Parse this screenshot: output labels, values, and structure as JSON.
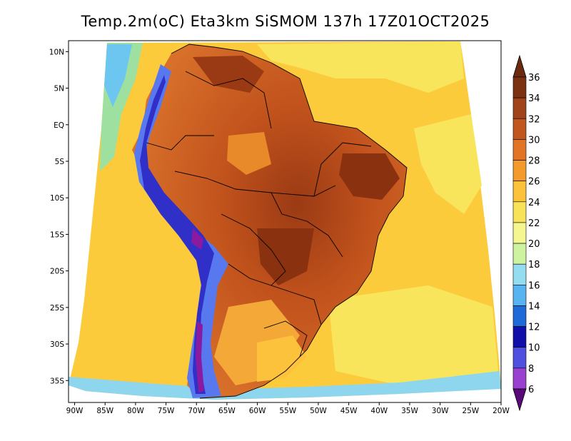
{
  "title": "Temp.2m(oC) Eta3km SiSMOM 137h 17Z01OCT2025",
  "map": {
    "lon_range": [
      -91,
      -20
    ],
    "lat_range": [
      -38,
      11.5
    ],
    "lon_ticks": [
      {
        "lon": -90,
        "label": "90W"
      },
      {
        "lon": -85,
        "label": "85W"
      },
      {
        "lon": -80,
        "label": "80W"
      },
      {
        "lon": -75,
        "label": "75W"
      },
      {
        "lon": -70,
        "label": "70W"
      },
      {
        "lon": -65,
        "label": "65W"
      },
      {
        "lon": -60,
        "label": "60W"
      },
      {
        "lon": -55,
        "label": "55W"
      },
      {
        "lon": -50,
        "label": "50W"
      },
      {
        "lon": -45,
        "label": "45W"
      },
      {
        "lon": -40,
        "label": "40W"
      },
      {
        "lon": -35,
        "label": "35W"
      },
      {
        "lon": -30,
        "label": "30W"
      },
      {
        "lon": -25,
        "label": "25W"
      },
      {
        "lon": -20,
        "label": "20W"
      }
    ],
    "lat_ticks": [
      {
        "lat": 10,
        "label": "10N"
      },
      {
        "lat": 5,
        "label": "5N"
      },
      {
        "lat": 0,
        "label": "EQ"
      },
      {
        "lat": -5,
        "label": "5S"
      },
      {
        "lat": -10,
        "label": "10S"
      },
      {
        "lat": -15,
        "label": "15S"
      },
      {
        "lat": -20,
        "label": "20S"
      },
      {
        "lat": -25,
        "label": "25S"
      },
      {
        "lat": -30,
        "label": "30S"
      },
      {
        "lat": -35,
        "label": "35S"
      }
    ],
    "fill_colors": {
      "ocean_warm": "#fdd245",
      "ocean_cool": "#f8e760",
      "ocean_cold": "#5cc0f0",
      "land_hot": "#c1521c",
      "land_very_hot": "#8c3210",
      "land_warm": "#e88a2a",
      "andes_cold": "#3a3ae0",
      "andes_coldest": "#8a1aa0"
    }
  },
  "colorbar": {
    "labels": [
      "36",
      "34",
      "32",
      "30",
      "28",
      "26",
      "24",
      "22",
      "20",
      "18",
      "16",
      "14",
      "12",
      "10",
      "8",
      "6"
    ],
    "top_color": "#6a2a10",
    "bottom_color": "#5a0a78",
    "bands_top_to_bottom": [
      "#7a3212",
      "#a0421a",
      "#c1561e",
      "#e27426",
      "#f49a2c",
      "#fcc23c",
      "#f8e25a",
      "#f6f690",
      "#cdf2a0",
      "#94dcf0",
      "#58b4f0",
      "#1e6ad8",
      "#1010a8",
      "#5050e0",
      "#9a40d0",
      "#7a10a0"
    ]
  }
}
